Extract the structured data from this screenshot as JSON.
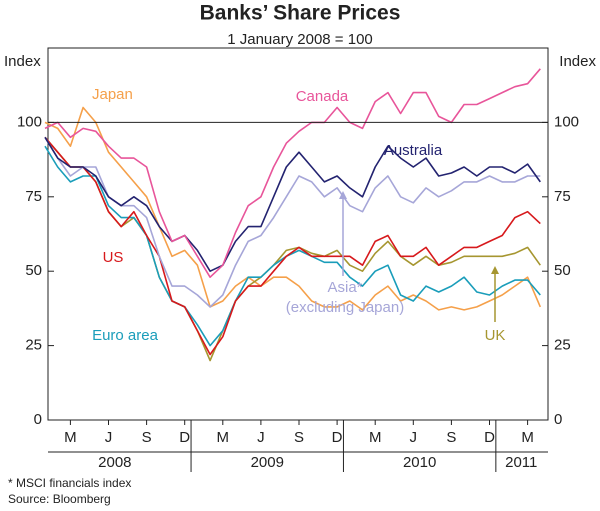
{
  "chart_data": {
    "type": "line",
    "title": "Banks’ Share Prices",
    "subtitle": "1 January 2008 = 100",
    "y_label": "Index",
    "y2_label": "Index",
    "x": [
      "2008-01",
      "2008-02",
      "2008-03",
      "2008-04",
      "2008-05",
      "2008-06",
      "2008-07",
      "2008-08",
      "2008-09",
      "2008-10",
      "2008-11",
      "2008-12",
      "2009-01",
      "2009-02",
      "2009-03",
      "2009-04",
      "2009-05",
      "2009-06",
      "2009-07",
      "2009-08",
      "2009-09",
      "2009-10",
      "2009-11",
      "2009-12",
      "2010-01",
      "2010-02",
      "2010-03",
      "2010-04",
      "2010-05",
      "2010-06",
      "2010-07",
      "2010-08",
      "2010-09",
      "2010-10",
      "2010-11",
      "2010-12",
      "2011-01",
      "2011-02",
      "2011-03",
      "2011-04"
    ],
    "xticks": [
      {
        "value": "2008-03",
        "label": "M"
      },
      {
        "value": "2008-06",
        "label": "J"
      },
      {
        "value": "2008-09",
        "label": "S"
      },
      {
        "value": "2008-12",
        "label": "D"
      },
      {
        "value": "2009-03",
        "label": "M"
      },
      {
        "value": "2009-06",
        "label": "J"
      },
      {
        "value": "2009-09",
        "label": "S"
      },
      {
        "value": "2009-12",
        "label": "D"
      },
      {
        "value": "2010-03",
        "label": "M"
      },
      {
        "value": "2010-06",
        "label": "J"
      },
      {
        "value": "2010-09",
        "label": "S"
      },
      {
        "value": "2010-12",
        "label": "D"
      },
      {
        "value": "2011-03",
        "label": "M"
      }
    ],
    "years": [
      "2008",
      "2009",
      "2010",
      "2011"
    ],
    "ylim": [
      0,
      125
    ],
    "yticks": [
      0,
      25,
      50,
      75,
      100
    ],
    "y2lim": [
      0,
      125
    ],
    "y2ticks": [
      0,
      25,
      50,
      75,
      100
    ],
    "reference_line": 100,
    "series": [
      {
        "name": "Canada",
        "color": "#e8559a",
        "values": [
          98,
          100,
          95,
          98,
          97,
          92,
          88,
          88,
          85,
          70,
          60,
          62,
          55,
          48,
          52,
          63,
          72,
          75,
          85,
          93,
          97,
          100,
          100,
          105,
          100,
          98,
          107,
          110,
          103,
          110,
          110,
          102,
          100,
          106,
          106,
          108,
          110,
          112,
          113,
          118
        ]
      },
      {
        "name": "Australia",
        "color": "#232370",
        "values": [
          95,
          88,
          85,
          85,
          82,
          75,
          72,
          75,
          72,
          65,
          60,
          62,
          57,
          50,
          52,
          60,
          65,
          65,
          75,
          85,
          90,
          85,
          80,
          82,
          78,
          75,
          85,
          92,
          88,
          85,
          88,
          82,
          83,
          85,
          82,
          85,
          85,
          83,
          86,
          80
        ]
      },
      {
        "name": "Asia*",
        "color": "#a6a6d8",
        "values": [
          95,
          88,
          82,
          85,
          85,
          75,
          72,
          72,
          68,
          55,
          45,
          45,
          42,
          38,
          42,
          52,
          60,
          62,
          68,
          75,
          82,
          80,
          75,
          78,
          72,
          70,
          78,
          82,
          75,
          73,
          78,
          75,
          77,
          80,
          80,
          82,
          80,
          80,
          82,
          82
        ]
      },
      {
        "name": "US",
        "color": "#d7191c",
        "values": [
          95,
          90,
          85,
          85,
          80,
          70,
          65,
          70,
          62,
          55,
          40,
          38,
          30,
          22,
          28,
          40,
          45,
          45,
          50,
          55,
          58,
          55,
          55,
          55,
          55,
          52,
          60,
          62,
          55,
          55,
          58,
          52,
          55,
          58,
          58,
          60,
          62,
          68,
          70,
          66
        ]
      },
      {
        "name": "Euro area",
        "color": "#1a9dba",
        "values": [
          92,
          85,
          80,
          82,
          82,
          72,
          68,
          68,
          62,
          48,
          40,
          38,
          32,
          25,
          30,
          40,
          48,
          48,
          52,
          55,
          57,
          55,
          53,
          53,
          48,
          45,
          50,
          52,
          42,
          40,
          45,
          43,
          45,
          48,
          43,
          42,
          45,
          47,
          47,
          42
        ]
      },
      {
        "name": "Japan",
        "color": "#f5a04a",
        "values": [
          100,
          98,
          92,
          105,
          100,
          90,
          85,
          80,
          75,
          65,
          55,
          57,
          52,
          38,
          40,
          45,
          48,
          45,
          48,
          48,
          45,
          40,
          38,
          38,
          40,
          37,
          42,
          45,
          40,
          42,
          40,
          37,
          38,
          37,
          38,
          40,
          42,
          45,
          48,
          38
        ]
      },
      {
        "name": "UK",
        "color": "#a69630",
        "values": [
          95,
          90,
          85,
          85,
          80,
          70,
          65,
          68,
          62,
          48,
          40,
          38,
          30,
          20,
          30,
          40,
          45,
          48,
          52,
          57,
          58,
          56,
          55,
          57,
          52,
          50,
          56,
          60,
          55,
          52,
          55,
          52,
          53,
          55,
          55,
          55,
          55,
          56,
          58,
          52
        ]
      }
    ],
    "annotations": [
      "(excluding Japan)"
    ],
    "footnotes": [
      "*   MSCI financials index",
      "Source: Bloomberg"
    ]
  }
}
